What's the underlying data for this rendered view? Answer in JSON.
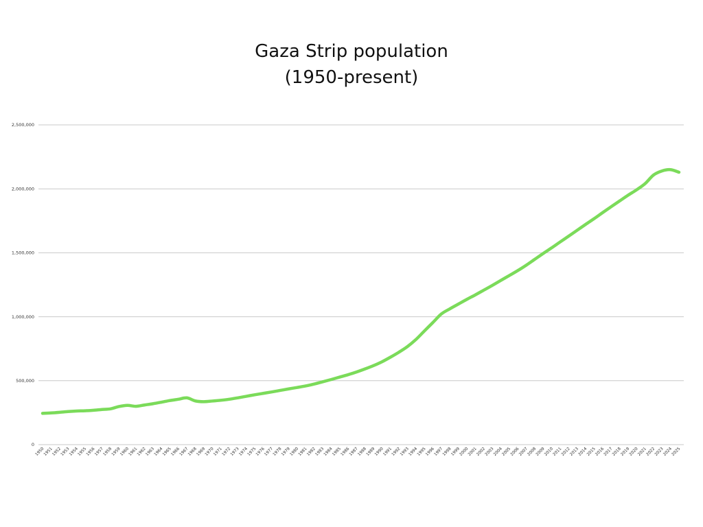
{
  "chart_data": {
    "type": "line",
    "title_line1": "Gaza Strip population",
    "title_line2": "(1950-present)",
    "xlabel": "",
    "ylabel": "",
    "ylim": [
      0,
      2500000
    ],
    "yticks": [
      {
        "value": 0,
        "label": "0"
      },
      {
        "value": 500000,
        "label": "500,000"
      },
      {
        "value": 1000000,
        "label": "1,000,000"
      },
      {
        "value": 1500000,
        "label": "1,500,000"
      },
      {
        "value": 2000000,
        "label": "2,000,000"
      },
      {
        "value": 2500000,
        "label": "2,500,000"
      }
    ],
    "grid": true,
    "series_color": "#7bdb5a",
    "series": [
      {
        "name": "Gaza Strip population",
        "x": [
          1950,
          1951,
          1952,
          1953,
          1954,
          1955,
          1956,
          1957,
          1958,
          1959,
          1960,
          1961,
          1962,
          1963,
          1964,
          1965,
          1966,
          1967,
          1968,
          1969,
          1970,
          1971,
          1972,
          1973,
          1974,
          1975,
          1976,
          1977,
          1978,
          1979,
          1980,
          1981,
          1982,
          1983,
          1984,
          1985,
          1986,
          1987,
          1988,
          1989,
          1990,
          1991,
          1992,
          1993,
          1994,
          1995,
          1996,
          1997,
          1998,
          1999,
          2000,
          2001,
          2002,
          2003,
          2004,
          2005,
          2006,
          2007,
          2008,
          2009,
          2010,
          2011,
          2012,
          2013,
          2014,
          2015,
          2016,
          2017,
          2018,
          2019,
          2020,
          2021,
          2022,
          2023,
          2024,
          2025
        ],
        "values": [
          245000,
          248000,
          253000,
          259000,
          263000,
          265000,
          269000,
          275000,
          280000,
          298000,
          307000,
          300000,
          310000,
          320000,
          332000,
          345000,
          355000,
          366000,
          342000,
          336000,
          341000,
          347000,
          355000,
          366000,
          378000,
          390000,
          401000,
          412000,
          424000,
          436000,
          447000,
          459000,
          474000,
          491000,
          509000,
          528000,
          547000,
          568000,
          592000,
          618000,
          648000,
          684000,
          723000,
          767000,
          822000,
          889000,
          955000,
          1022000,
          1062000,
          1099000,
          1136000,
          1171000,
          1208000,
          1245000,
          1284000,
          1322000,
          1361000,
          1403000,
          1449000,
          1495000,
          1539000,
          1585000,
          1630000,
          1676000,
          1722000,
          1767000,
          1814000,
          1860000,
          1905000,
          1950000,
          1992000,
          2040000,
          2108000,
          2140000,
          2150000,
          2130000
        ]
      }
    ]
  }
}
